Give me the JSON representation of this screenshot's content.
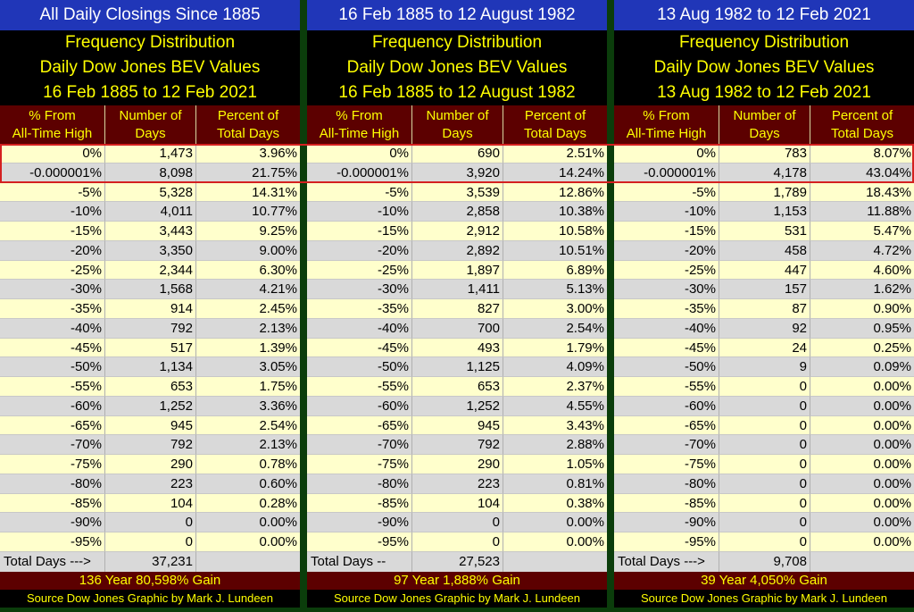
{
  "chart_data": [
    {
      "type": "table",
      "header_top": "All Daily Closings Since 1885",
      "title_lines": [
        "Frequency Distribution",
        "Daily Dow Jones BEV Values",
        "16 Feb 1885 to 12 Feb 2021"
      ],
      "columns": [
        "% From All-Time High",
        "Number of Days",
        "Percent of Total Days"
      ],
      "rows": [
        [
          "0%",
          "1,473",
          "3.96%"
        ],
        [
          "-0.000001%",
          "8,098",
          "21.75%"
        ],
        [
          "-5%",
          "5,328",
          "14.31%"
        ],
        [
          "-10%",
          "4,011",
          "10.77%"
        ],
        [
          "-15%",
          "3,443",
          "9.25%"
        ],
        [
          "-20%",
          "3,350",
          "9.00%"
        ],
        [
          "-25%",
          "2,344",
          "6.30%"
        ],
        [
          "-30%",
          "1,568",
          "4.21%"
        ],
        [
          "-35%",
          "914",
          "2.45%"
        ],
        [
          "-40%",
          "792",
          "2.13%"
        ],
        [
          "-45%",
          "517",
          "1.39%"
        ],
        [
          "-50%",
          "1,134",
          "3.05%"
        ],
        [
          "-55%",
          "653",
          "1.75%"
        ],
        [
          "-60%",
          "1,252",
          "3.36%"
        ],
        [
          "-65%",
          "945",
          "2.54%"
        ],
        [
          "-70%",
          "792",
          "2.13%"
        ],
        [
          "-75%",
          "290",
          "0.78%"
        ],
        [
          "-80%",
          "223",
          "0.60%"
        ],
        [
          "-85%",
          "104",
          "0.28%"
        ],
        [
          "-90%",
          "0",
          "0.00%"
        ],
        [
          "-95%",
          "0",
          "0.00%"
        ]
      ],
      "total_label": "Total Days --->",
      "total_value": "37,231",
      "gain": "136 Year 80,598% Gain",
      "source": "Source Dow Jones   Graphic by Mark J. Lundeen"
    },
    {
      "type": "table",
      "header_top": "16 Feb 1885 to 12 August 1982",
      "title_lines": [
        "Frequency Distribution",
        "Daily Dow Jones BEV Values",
        "16 Feb 1885 to 12 August 1982"
      ],
      "columns": [
        "% From All-Time High",
        "Number of Days",
        "Percent of Total Days"
      ],
      "rows": [
        [
          "0%",
          "690",
          "2.51%"
        ],
        [
          "-0.000001%",
          "3,920",
          "14.24%"
        ],
        [
          "-5%",
          "3,539",
          "12.86%"
        ],
        [
          "-10%",
          "2,858",
          "10.38%"
        ],
        [
          "-15%",
          "2,912",
          "10.58%"
        ],
        [
          "-20%",
          "2,892",
          "10.51%"
        ],
        [
          "-25%",
          "1,897",
          "6.89%"
        ],
        [
          "-30%",
          "1,411",
          "5.13%"
        ],
        [
          "-35%",
          "827",
          "3.00%"
        ],
        [
          "-40%",
          "700",
          "2.54%"
        ],
        [
          "-45%",
          "493",
          "1.79%"
        ],
        [
          "-50%",
          "1,125",
          "4.09%"
        ],
        [
          "-55%",
          "653",
          "2.37%"
        ],
        [
          "-60%",
          "1,252",
          "4.55%"
        ],
        [
          "-65%",
          "945",
          "3.43%"
        ],
        [
          "-70%",
          "792",
          "2.88%"
        ],
        [
          "-75%",
          "290",
          "1.05%"
        ],
        [
          "-80%",
          "223",
          "0.81%"
        ],
        [
          "-85%",
          "104",
          "0.38%"
        ],
        [
          "-90%",
          "0",
          "0.00%"
        ],
        [
          "-95%",
          "0",
          "0.00%"
        ]
      ],
      "total_label": "Total Days --",
      "total_value": "27,523",
      "gain": "97 Year 1,888% Gain",
      "source": "Source Dow Jones   Graphic by Mark J. Lundeen"
    },
    {
      "type": "table",
      "header_top": "13 Aug 1982 to 12 Feb 2021",
      "title_lines": [
        "Frequency Distribution",
        "Daily Dow Jones BEV Values",
        "13 Aug 1982 to 12 Feb 2021"
      ],
      "columns": [
        "% From All-Time High",
        "Number of Days",
        "Percent of Total Days"
      ],
      "rows": [
        [
          "0%",
          "783",
          "8.07%"
        ],
        [
          "-0.000001%",
          "4,178",
          "43.04%"
        ],
        [
          "-5%",
          "1,789",
          "18.43%"
        ],
        [
          "-10%",
          "1,153",
          "11.88%"
        ],
        [
          "-15%",
          "531",
          "5.47%"
        ],
        [
          "-20%",
          "458",
          "4.72%"
        ],
        [
          "-25%",
          "447",
          "4.60%"
        ],
        [
          "-30%",
          "157",
          "1.62%"
        ],
        [
          "-35%",
          "87",
          "0.90%"
        ],
        [
          "-40%",
          "92",
          "0.95%"
        ],
        [
          "-45%",
          "24",
          "0.25%"
        ],
        [
          "-50%",
          "9",
          "0.09%"
        ],
        [
          "-55%",
          "0",
          "0.00%"
        ],
        [
          "-60%",
          "0",
          "0.00%"
        ],
        [
          "-65%",
          "0",
          "0.00%"
        ],
        [
          "-70%",
          "0",
          "0.00%"
        ],
        [
          "-75%",
          "0",
          "0.00%"
        ],
        [
          "-80%",
          "0",
          "0.00%"
        ],
        [
          "-85%",
          "0",
          "0.00%"
        ],
        [
          "-90%",
          "0",
          "0.00%"
        ],
        [
          "-95%",
          "0",
          "0.00%"
        ]
      ],
      "total_label": "Total Days --->",
      "total_value": "9,708",
      "gain": "39 Year 4,050% Gain",
      "source": "Source Dow Jones   Graphic by Mark J. Lundeen"
    }
  ],
  "colors": {
    "background": "#0b3d0b",
    "header_blue": "#2036b8",
    "title_yellow": "#ffff00",
    "maroon": "#5c0000",
    "row_light": "#ffffcc",
    "row_grey": "#d9d9d9",
    "highlight_red": "#d42020"
  }
}
